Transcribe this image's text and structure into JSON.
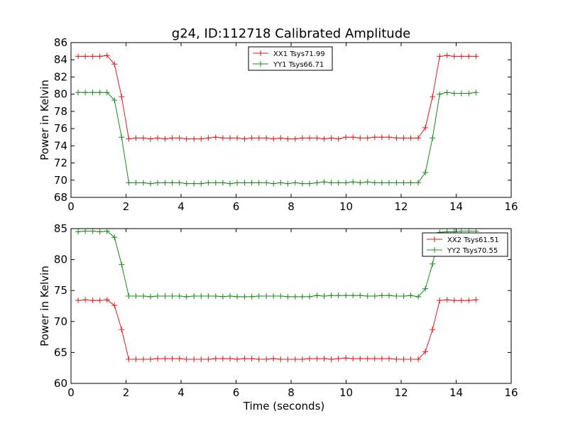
{
  "figure": {
    "title": "g24, ID:112718 Calibrated Amplitude"
  },
  "colors": {
    "red": "#e31a1c",
    "green": "#1a8a1a"
  },
  "chart_data": [
    {
      "type": "line",
      "title": "g24, ID:112718 Calibrated Amplitude",
      "xlabel": "",
      "ylabel": "Power in Kelvin",
      "xlim": [
        0,
        16
      ],
      "ylim": [
        68,
        86
      ],
      "xticks": [
        0,
        2,
        4,
        6,
        8,
        10,
        12,
        14,
        16
      ],
      "yticks": [
        68,
        70,
        72,
        74,
        76,
        78,
        80,
        82,
        84,
        86
      ],
      "legend": "top-center",
      "grid": false,
      "x": [
        0.26,
        0.52,
        0.79,
        1.05,
        1.31,
        1.58,
        1.84,
        2.1,
        2.36,
        2.63,
        2.89,
        3.15,
        3.42,
        3.68,
        3.94,
        4.2,
        4.47,
        4.73,
        4.99,
        5.26,
        5.52,
        5.78,
        6.04,
        6.31,
        6.57,
        6.83,
        7.1,
        7.36,
        7.62,
        7.88,
        8.15,
        8.41,
        8.67,
        8.94,
        9.2,
        9.46,
        9.72,
        9.99,
        10.25,
        10.51,
        10.78,
        11.04,
        11.3,
        11.56,
        11.83,
        12.09,
        12.35,
        12.62,
        12.88,
        13.14,
        13.4,
        13.67,
        13.93,
        14.19,
        14.46,
        14.72
      ],
      "series": [
        {
          "name": "XX1 Tsys71.99",
          "color": "#e31a1c",
          "values": [
            84.4,
            84.4,
            84.4,
            84.4,
            84.5,
            83.5,
            79.7,
            74.8,
            74.9,
            74.9,
            74.8,
            74.9,
            74.8,
            74.9,
            74.9,
            74.8,
            74.8,
            74.8,
            74.9,
            75.0,
            74.9,
            74.9,
            74.9,
            74.8,
            74.9,
            74.9,
            74.9,
            74.8,
            74.9,
            74.8,
            74.8,
            74.9,
            74.9,
            74.9,
            74.8,
            74.9,
            74.8,
            75.0,
            75.0,
            74.9,
            74.9,
            75.0,
            75.0,
            75.0,
            74.9,
            74.9,
            74.9,
            74.9,
            76.1,
            79.7,
            84.4,
            84.5,
            84.4,
            84.4,
            84.4,
            84.4
          ]
        },
        {
          "name": "YY1 Tsys66.71",
          "color": "#1a8a1a",
          "values": [
            80.2,
            80.2,
            80.2,
            80.2,
            80.2,
            79.3,
            75.0,
            69.7,
            69.7,
            69.7,
            69.6,
            69.7,
            69.7,
            69.7,
            69.7,
            69.6,
            69.6,
            69.6,
            69.7,
            69.7,
            69.7,
            69.6,
            69.7,
            69.7,
            69.7,
            69.7,
            69.7,
            69.6,
            69.7,
            69.6,
            69.7,
            69.6,
            69.6,
            69.7,
            69.8,
            69.7,
            69.7,
            69.7,
            69.8,
            69.7,
            69.8,
            69.7,
            69.7,
            69.7,
            69.7,
            69.7,
            69.7,
            69.7,
            70.9,
            74.9,
            80.0,
            80.2,
            80.1,
            80.1,
            80.1,
            80.2
          ]
        }
      ]
    },
    {
      "type": "line",
      "title": "",
      "xlabel": "Time (seconds)",
      "ylabel": "Power in Kelvin",
      "xlim": [
        0,
        16
      ],
      "ylim": [
        60,
        85
      ],
      "xticks": [
        0,
        2,
        4,
        6,
        8,
        10,
        12,
        14,
        16
      ],
      "yticks": [
        60,
        65,
        70,
        75,
        80,
        85
      ],
      "legend": "top-right",
      "grid": false,
      "x": [
        0.26,
        0.52,
        0.79,
        1.05,
        1.31,
        1.58,
        1.84,
        2.1,
        2.36,
        2.63,
        2.89,
        3.15,
        3.42,
        3.68,
        3.94,
        4.2,
        4.47,
        4.73,
        4.99,
        5.26,
        5.52,
        5.78,
        6.04,
        6.31,
        6.57,
        6.83,
        7.1,
        7.36,
        7.62,
        7.88,
        8.15,
        8.41,
        8.67,
        8.94,
        9.2,
        9.46,
        9.72,
        9.99,
        10.25,
        10.51,
        10.78,
        11.04,
        11.3,
        11.56,
        11.83,
        12.09,
        12.35,
        12.62,
        12.88,
        13.14,
        13.4,
        13.67,
        13.93,
        14.19,
        14.46,
        14.72
      ],
      "series": [
        {
          "name": "XX2 Tsys61.51",
          "color": "#e31a1c",
          "values": [
            73.4,
            73.5,
            73.4,
            73.4,
            73.5,
            72.6,
            68.7,
            63.9,
            63.9,
            63.9,
            63.9,
            64.0,
            64.0,
            64.0,
            64.0,
            63.9,
            63.9,
            63.9,
            63.9,
            64.0,
            64.0,
            64.0,
            63.9,
            64.0,
            64.0,
            63.9,
            63.9,
            64.0,
            63.9,
            63.9,
            63.9,
            63.9,
            64.0,
            64.0,
            64.0,
            63.9,
            64.0,
            64.1,
            64.0,
            64.0,
            64.0,
            64.0,
            64.0,
            64.0,
            63.9,
            63.9,
            63.9,
            63.9,
            65.1,
            68.7,
            73.4,
            73.5,
            73.4,
            73.4,
            73.4,
            73.5
          ]
        },
        {
          "name": "YY2 Tsys70.55",
          "color": "#1a8a1a",
          "values": [
            84.5,
            84.6,
            84.6,
            84.5,
            84.6,
            83.6,
            79.2,
            74.1,
            74.1,
            74.1,
            74.0,
            74.1,
            74.1,
            74.1,
            74.1,
            74.0,
            74.1,
            74.1,
            74.1,
            74.1,
            74.0,
            74.1,
            74.0,
            74.0,
            74.0,
            74.1,
            74.1,
            74.1,
            74.1,
            74.0,
            74.0,
            74.0,
            74.0,
            74.2,
            74.1,
            74.2,
            74.2,
            74.2,
            74.2,
            74.2,
            74.1,
            74.1,
            74.2,
            74.2,
            74.1,
            74.1,
            74.2,
            74.0,
            75.3,
            79.3,
            84.4,
            84.5,
            84.5,
            84.6,
            84.6,
            84.6
          ]
        }
      ]
    }
  ]
}
